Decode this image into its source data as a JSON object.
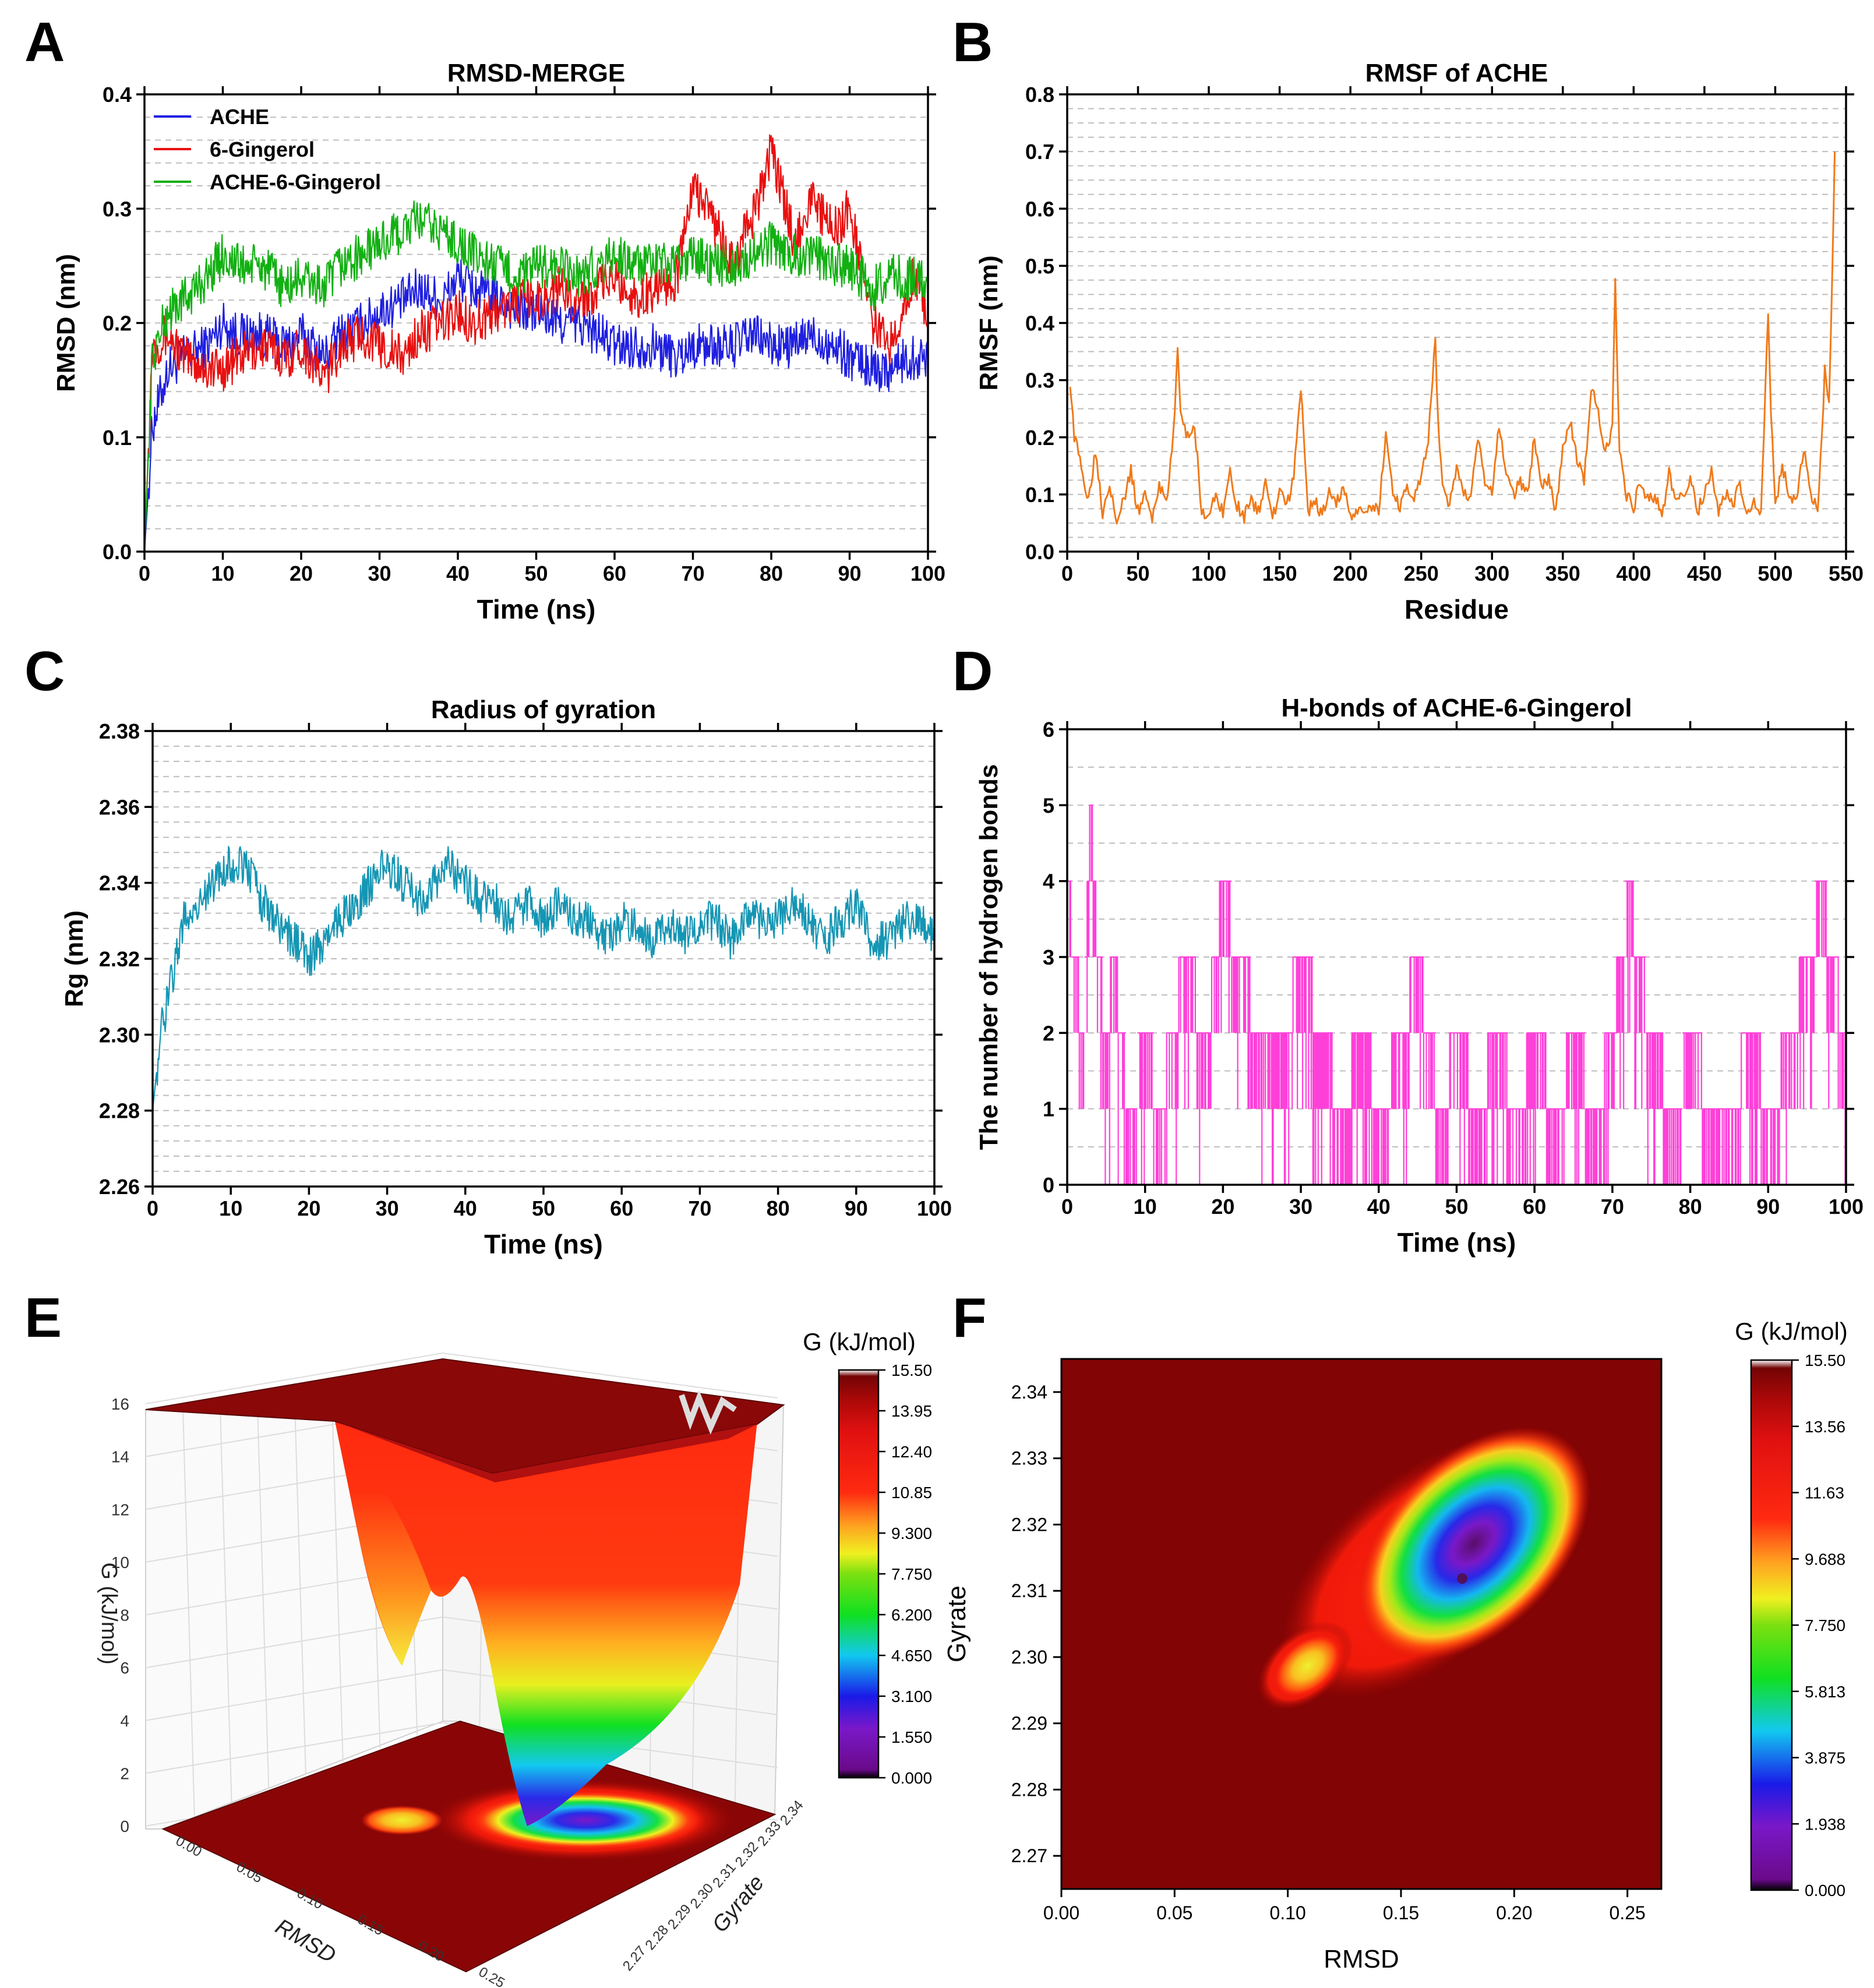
{
  "chart_data": [
    {
      "id": "A",
      "panel_letter": "A",
      "type": "line",
      "title": "RMSD-MERGE",
      "xlabel": "Time (ns)",
      "ylabel": "RMSD (nm)",
      "xlim": [
        0,
        100
      ],
      "ylim": [
        0,
        0.4
      ],
      "xticks": [
        "0",
        "10",
        "20",
        "30",
        "40",
        "50",
        "60",
        "70",
        "80",
        "90",
        "100"
      ],
      "yticks": [
        "0.0",
        "0.1",
        "0.2",
        "0.3",
        "0.4"
      ],
      "legend_position": "top-left",
      "series": [
        {
          "name": "ACHE",
          "color": "#1f1fe0",
          "x": [
            0,
            1,
            3,
            5,
            8,
            10,
            12,
            15,
            18,
            20,
            23,
            25,
            28,
            30,
            33,
            35,
            38,
            40,
            42,
            45,
            48,
            50,
            53,
            55,
            58,
            60,
            63,
            65,
            68,
            70,
            73,
            75,
            78,
            80,
            83,
            85,
            88,
            90,
            93,
            95,
            98,
            100
          ],
          "y": [
            0.0,
            0.11,
            0.16,
            0.17,
            0.18,
            0.2,
            0.19,
            0.19,
            0.18,
            0.19,
            0.17,
            0.19,
            0.2,
            0.21,
            0.22,
            0.23,
            0.22,
            0.24,
            0.23,
            0.22,
            0.21,
            0.21,
            0.2,
            0.2,
            0.19,
            0.18,
            0.18,
            0.18,
            0.17,
            0.18,
            0.18,
            0.18,
            0.19,
            0.18,
            0.18,
            0.19,
            0.18,
            0.17,
            0.16,
            0.16,
            0.17,
            0.17
          ]
        },
        {
          "name": "6-Gingerol",
          "color": "#e81010",
          "x": [
            0,
            1,
            3,
            5,
            8,
            10,
            12,
            15,
            18,
            20,
            23,
            25,
            28,
            30,
            33,
            35,
            38,
            40,
            42,
            45,
            48,
            50,
            53,
            55,
            58,
            60,
            63,
            65,
            68,
            70,
            72,
            75,
            78,
            80,
            83,
            85,
            88,
            90,
            93,
            95,
            98,
            100
          ],
          "y": [
            0.0,
            0.18,
            0.19,
            0.17,
            0.16,
            0.16,
            0.17,
            0.18,
            0.17,
            0.18,
            0.15,
            0.18,
            0.19,
            0.18,
            0.17,
            0.19,
            0.2,
            0.21,
            0.2,
            0.21,
            0.22,
            0.22,
            0.23,
            0.22,
            0.23,
            0.24,
            0.22,
            0.23,
            0.24,
            0.32,
            0.3,
            0.25,
            0.3,
            0.35,
            0.27,
            0.31,
            0.28,
            0.3,
            0.2,
            0.18,
            0.24,
            0.21
          ]
        },
        {
          "name": "ACHE-6-Gingerol",
          "color": "#12b012",
          "x": [
            0,
            1,
            3,
            5,
            8,
            10,
            12,
            15,
            18,
            20,
            23,
            25,
            28,
            30,
            33,
            35,
            38,
            40,
            42,
            45,
            48,
            50,
            53,
            55,
            58,
            60,
            63,
            65,
            68,
            70,
            73,
            75,
            78,
            80,
            83,
            85,
            88,
            90,
            93,
            95,
            98,
            100
          ],
          "y": [
            0.0,
            0.17,
            0.21,
            0.22,
            0.24,
            0.26,
            0.25,
            0.25,
            0.23,
            0.24,
            0.23,
            0.25,
            0.26,
            0.27,
            0.28,
            0.29,
            0.28,
            0.27,
            0.26,
            0.25,
            0.24,
            0.25,
            0.25,
            0.24,
            0.25,
            0.26,
            0.25,
            0.25,
            0.25,
            0.26,
            0.25,
            0.25,
            0.26,
            0.27,
            0.26,
            0.26,
            0.25,
            0.25,
            0.23,
            0.24,
            0.24,
            0.24
          ]
        }
      ]
    },
    {
      "id": "B",
      "panel_letter": "B",
      "type": "line",
      "title": "RMSF of ACHE",
      "xlabel": "Residue",
      "ylabel": "RMSF (nm)",
      "xlim": [
        0,
        550
      ],
      "ylim": [
        0,
        0.8
      ],
      "xticks": [
        "0",
        "50",
        "100",
        "150",
        "200",
        "250",
        "300",
        "350",
        "400",
        "450",
        "500",
        "550"
      ],
      "yticks": [
        "0.0",
        "0.1",
        "0.2",
        "0.3",
        "0.4",
        "0.5",
        "0.6",
        "0.7",
        "0.8"
      ],
      "series": [
        {
          "name": "RMSF",
          "color": "#f07a1a",
          "x": [
            2,
            5,
            10,
            15,
            20,
            25,
            30,
            35,
            40,
            45,
            50,
            55,
            60,
            65,
            70,
            75,
            78,
            80,
            85,
            90,
            95,
            100,
            105,
            110,
            115,
            120,
            125,
            130,
            135,
            140,
            145,
            150,
            155,
            160,
            165,
            170,
            175,
            180,
            185,
            190,
            195,
            200,
            205,
            210,
            215,
            220,
            225,
            230,
            235,
            240,
            245,
            250,
            255,
            260,
            262,
            265,
            270,
            275,
            280,
            285,
            290,
            295,
            300,
            305,
            310,
            315,
            320,
            325,
            330,
            335,
            340,
            345,
            350,
            355,
            360,
            365,
            370,
            375,
            380,
            385,
            387,
            390,
            395,
            400,
            405,
            410,
            415,
            420,
            425,
            430,
            435,
            440,
            445,
            450,
            455,
            460,
            465,
            470,
            475,
            480,
            485,
            490,
            495,
            497,
            500,
            505,
            510,
            515,
            520,
            525,
            530,
            533,
            535,
            538,
            540,
            542
          ],
          "y": [
            0.3,
            0.2,
            0.15,
            0.09,
            0.18,
            0.07,
            0.12,
            0.06,
            0.09,
            0.14,
            0.07,
            0.1,
            0.06,
            0.12,
            0.08,
            0.2,
            0.36,
            0.25,
            0.2,
            0.22,
            0.07,
            0.06,
            0.1,
            0.07,
            0.14,
            0.08,
            0.06,
            0.09,
            0.07,
            0.12,
            0.06,
            0.1,
            0.08,
            0.13,
            0.29,
            0.07,
            0.09,
            0.06,
            0.11,
            0.08,
            0.12,
            0.06,
            0.07,
            0.06,
            0.08,
            0.07,
            0.21,
            0.1,
            0.08,
            0.12,
            0.09,
            0.13,
            0.2,
            0.37,
            0.22,
            0.12,
            0.08,
            0.15,
            0.1,
            0.09,
            0.2,
            0.12,
            0.1,
            0.22,
            0.14,
            0.1,
            0.12,
            0.1,
            0.2,
            0.12,
            0.13,
            0.07,
            0.18,
            0.23,
            0.16,
            0.12,
            0.29,
            0.24,
            0.17,
            0.22,
            0.48,
            0.18,
            0.1,
            0.08,
            0.12,
            0.09,
            0.1,
            0.06,
            0.14,
            0.08,
            0.1,
            0.13,
            0.07,
            0.1,
            0.14,
            0.07,
            0.1,
            0.08,
            0.12,
            0.06,
            0.09,
            0.06,
            0.42,
            0.25,
            0.08,
            0.15,
            0.1,
            0.09,
            0.18,
            0.1,
            0.08,
            0.2,
            0.32,
            0.25,
            0.45,
            0.69
          ]
        }
      ]
    },
    {
      "id": "C",
      "panel_letter": "C",
      "type": "line",
      "title": "Radius of gyration",
      "xlabel": "Time (ns)",
      "ylabel": "Rg (nm)",
      "xlim": [
        0,
        100
      ],
      "ylim": [
        2.26,
        2.38
      ],
      "xticks": [
        "0",
        "10",
        "20",
        "30",
        "40",
        "50",
        "60",
        "70",
        "80",
        "90",
        "100"
      ],
      "yticks": [
        "2.26",
        "2.28",
        "2.30",
        "2.32",
        "2.34",
        "2.36",
        "2.38"
      ],
      "series": [
        {
          "name": "Rg",
          "color": "#1596b4",
          "x": [
            0,
            1,
            2,
            4,
            6,
            8,
            10,
            12,
            14,
            16,
            18,
            20,
            22,
            24,
            26,
            28,
            30,
            32,
            34,
            36,
            38,
            40,
            42,
            44,
            46,
            48,
            50,
            52,
            54,
            56,
            58,
            60,
            62,
            64,
            66,
            68,
            70,
            72,
            74,
            76,
            78,
            80,
            82,
            84,
            86,
            88,
            90,
            92,
            94,
            96,
            98,
            100
          ],
          "y": [
            2.28,
            2.3,
            2.31,
            2.33,
            2.335,
            2.34,
            2.345,
            2.345,
            2.335,
            2.33,
            2.325,
            2.32,
            2.325,
            2.33,
            2.335,
            2.34,
            2.345,
            2.34,
            2.335,
            2.34,
            2.345,
            2.34,
            2.335,
            2.335,
            2.33,
            2.335,
            2.33,
            2.335,
            2.33,
            2.33,
            2.325,
            2.33,
            2.33,
            2.325,
            2.33,
            2.325,
            2.33,
            2.33,
            2.325,
            2.33,
            2.33,
            2.33,
            2.335,
            2.33,
            2.325,
            2.33,
            2.335,
            2.325,
            2.325,
            2.33,
            2.33,
            2.325
          ]
        }
      ]
    },
    {
      "id": "D",
      "panel_letter": "D",
      "type": "line",
      "title": "H-bonds of ACHE-6-Gingerol",
      "xlabel": "Time (ns)",
      "ylabel": "The number of hydrogen bonds",
      "xlim": [
        0,
        100
      ],
      "ylim": [
        0,
        6
      ],
      "xticks": [
        "0",
        "10",
        "20",
        "30",
        "40",
        "50",
        "60",
        "70",
        "80",
        "90",
        "100"
      ],
      "yticks": [
        "0",
        "1",
        "2",
        "3",
        "4",
        "5",
        "6"
      ],
      "series": [
        {
          "name": "H-bonds",
          "color": "#ff40d8",
          "x": [
            0,
            1,
            2,
            3,
            4,
            5,
            6,
            8,
            10,
            12,
            15,
            18,
            20,
            22,
            25,
            28,
            30,
            33,
            35,
            38,
            40,
            43,
            45,
            48,
            50,
            53,
            55,
            58,
            60,
            63,
            65,
            68,
            70,
            72,
            75,
            78,
            80,
            83,
            85,
            88,
            90,
            93,
            95,
            97,
            98,
            100
          ],
          "y": [
            4,
            3,
            2,
            5,
            3,
            2,
            3,
            1,
            2,
            1,
            3,
            2,
            4,
            3,
            2,
            2,
            3,
            2,
            1,
            2,
            1,
            2,
            3,
            1,
            2,
            1,
            2,
            1,
            2,
            1,
            2,
            1,
            2,
            4,
            2,
            1,
            2,
            1,
            1,
            2,
            1,
            2,
            3,
            4,
            3,
            2
          ]
        }
      ]
    },
    {
      "id": "E",
      "panel_letter": "E",
      "type": "surface",
      "title": "",
      "xlabel": "RMSD",
      "ylabel": "Gyrate",
      "zlabel": "G (kJ/mol)",
      "zticks": [
        "0",
        "2",
        "4",
        "6",
        "8",
        "10",
        "12",
        "14",
        "16"
      ],
      "xticks": [
        "0.00",
        "0.05",
        "0.10",
        "0.15",
        "0.20",
        "0.25"
      ],
      "yticks": [
        "2.27",
        "2.28",
        "2.29",
        "2.30",
        "2.31",
        "2.32",
        "2.33",
        "2.34"
      ],
      "colorbar_title": "G (kJ/mol)",
      "colorbar_ticks": [
        "15.50",
        "13.95",
        "12.40",
        "10.85",
        "9.300",
        "7.750",
        "6.200",
        "4.650",
        "3.100",
        "1.550",
        "0.000"
      ]
    },
    {
      "id": "F",
      "panel_letter": "F",
      "type": "heatmap",
      "title": "",
      "xlabel": "RMSD",
      "ylabel": "Gyrate",
      "xlim": [
        0,
        0.265
      ],
      "ylim": [
        2.265,
        2.345
      ],
      "xticks": [
        "0.00",
        "0.05",
        "0.10",
        "0.15",
        "0.20",
        "0.25"
      ],
      "yticks": [
        "2.27",
        "2.28",
        "2.29",
        "2.30",
        "2.31",
        "2.32",
        "2.33",
        "2.34"
      ],
      "minimum": {
        "rmsd": 0.178,
        "gyrate": 2.313,
        "G": 0.0
      },
      "secondary_minimum": {
        "rmsd": 0.105,
        "gyrate": 2.298,
        "G": 7.75
      },
      "colorbar_title": "G (kJ/mol)",
      "colorbar_ticks": [
        "15.50",
        "13.56",
        "11.63",
        "9.688",
        "7.750",
        "5.813",
        "3.875",
        "1.938",
        "0.000"
      ]
    }
  ]
}
